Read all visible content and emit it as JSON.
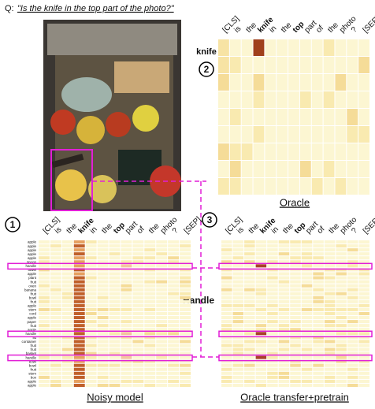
{
  "question_prefix": "Q:",
  "question": "\"Is the knife in the top part of the photo?\"",
  "tokens": [
    "[CLS]",
    "is",
    "the",
    "knife",
    "in",
    "the",
    "top",
    "part",
    "of",
    "the",
    "photo",
    "?",
    "[SEP]"
  ],
  "annotation": "Handle",
  "oracle": {
    "number": "2",
    "title": "Oracle",
    "row_label": "knife"
  },
  "noisy": {
    "number": "1",
    "title": "Noisy model",
    "row_labels": [
      "apple",
      "apple",
      "apple",
      "apple",
      "apple",
      "spoon",
      "handle",
      "towel",
      "apple",
      "plant",
      "fruit",
      "oven",
      "banana",
      "fruit",
      "bowl",
      "fruit",
      "apple",
      "stem",
      "cord",
      "apple",
      "paper",
      "fruit",
      "apple",
      "handle",
      "lid",
      "container",
      "fruit",
      "fruit",
      "basket",
      "handle",
      "bowl",
      "bowl",
      "fruit",
      "stem",
      "box",
      "apple",
      "apple"
    ]
  },
  "transfer": {
    "number": "3",
    "title": "Oracle transfer+pretrain"
  }
}
